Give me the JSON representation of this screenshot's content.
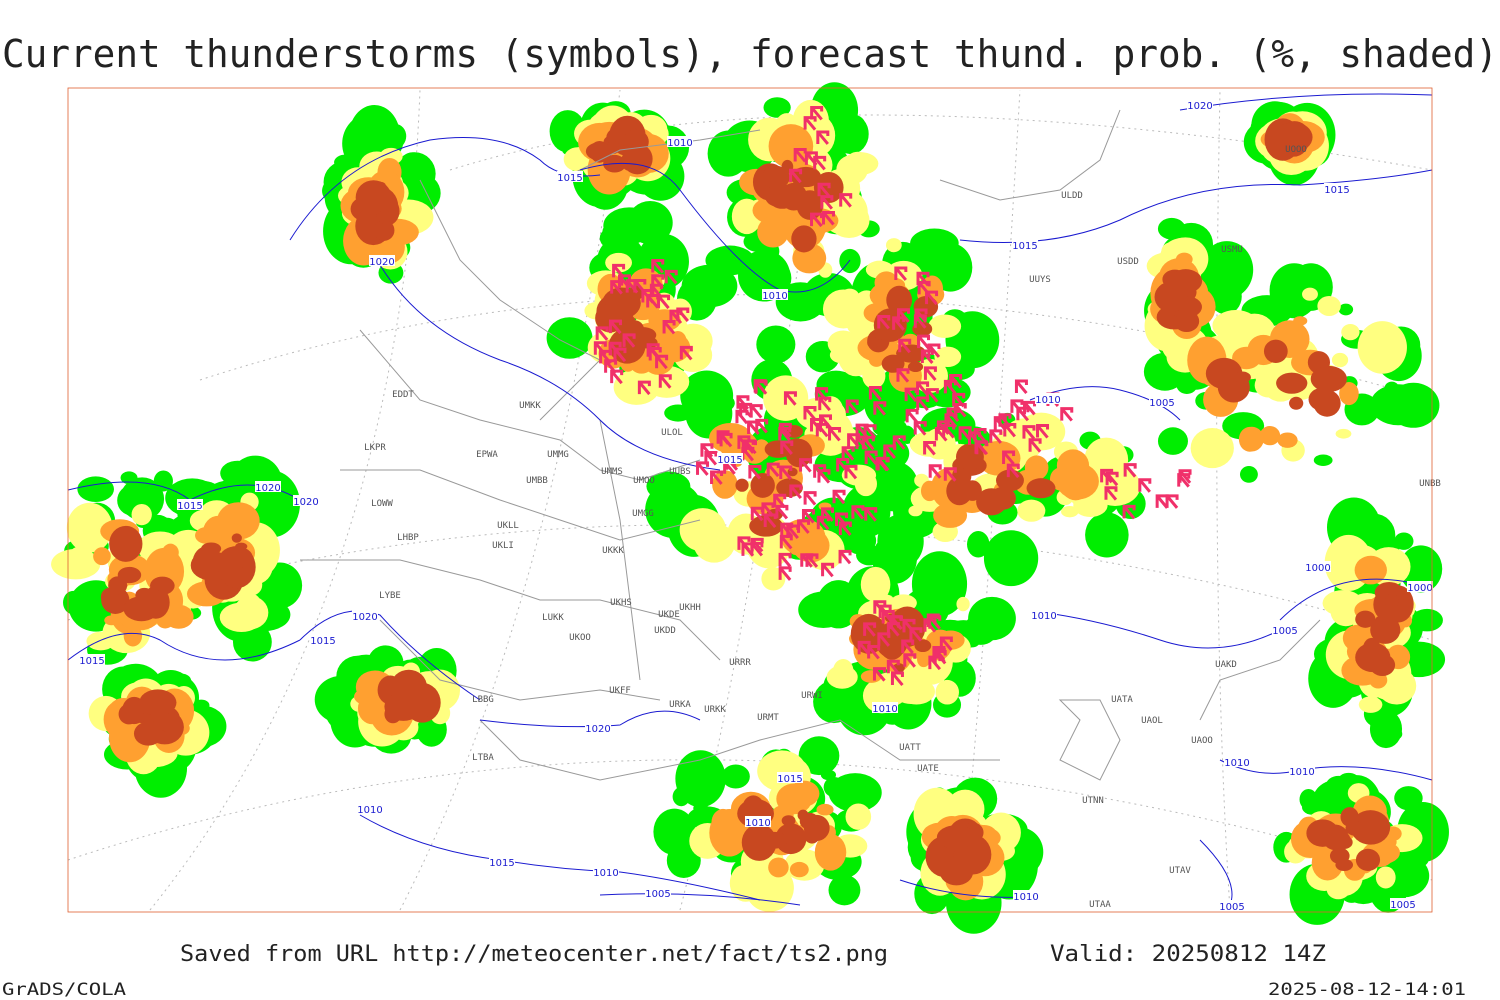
{
  "title": "Current thunderstorms (symbols), forecast thund. prob. (%, shaded)",
  "footer": {
    "source": "Saved from URL http://meteocenter.net/fact/ts2.png",
    "valid": "Valid: 20250812 14Z",
    "software": "GrADS/COLA",
    "timestamp": "2025-08-12-14:01"
  },
  "map": {
    "stations": [
      "UMKK",
      "EDDT",
      "LKPR",
      "EPWA",
      "UMMG",
      "UMBB",
      "UMMS",
      "UMOO",
      "UUBS",
      "LOWW",
      "LHBP",
      "UKLL",
      "UKLI",
      "UMGG",
      "UKKK",
      "LYBE",
      "LUKK",
      "UKHS",
      "UKDE",
      "UKDD",
      "UKHH",
      "UKOO",
      "LBBG",
      "UKFF",
      "URKA",
      "URKK",
      "URMT",
      "URRR",
      "URWI",
      "UATA",
      "UAOL",
      "UAOO",
      "UAKD",
      "UATE",
      "UATT",
      "UTNN",
      "UTAV",
      "UTAA",
      "ULDD",
      "USDD",
      "USMU",
      "ULOL",
      "UUYS",
      "UNBB",
      "UOOO",
      "LTBA"
    ],
    "isobars": [
      "1020",
      "1010",
      "1015",
      "1020",
      "1010",
      "1015",
      "1010",
      "1005",
      "1015",
      "1020",
      "1020",
      "1015",
      "1020",
      "1015",
      "1015",
      "1015",
      "1010",
      "1010",
      "1020",
      "1010",
      "1015",
      "1015",
      "1010",
      "1005",
      "1010",
      "1000",
      "1005",
      "1000",
      "1010",
      "1010",
      "1005",
      "1005",
      "1010"
    ]
  }
}
